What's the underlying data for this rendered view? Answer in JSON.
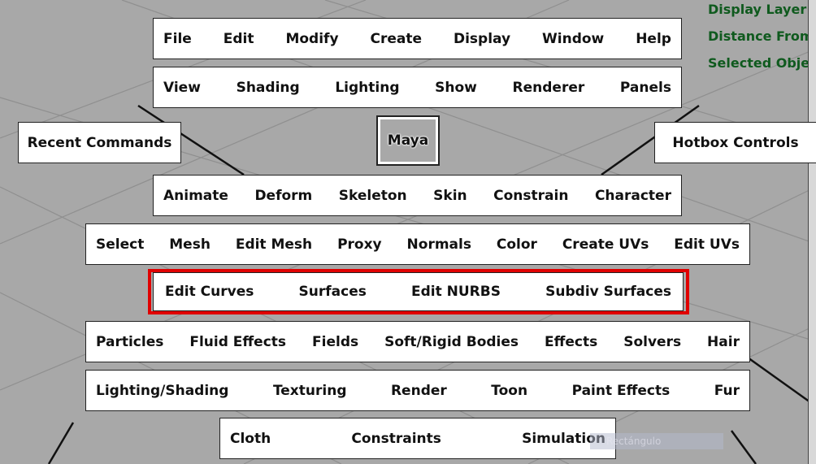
{
  "hud": {
    "lines": [
      "Display Layer:",
      "Distance From",
      "Selected Obje"
    ],
    "color": "#0f5a1e"
  },
  "rows": {
    "main_menu": [
      "File",
      "Edit",
      "Modify",
      "Create",
      "Display",
      "Window",
      "Help"
    ],
    "panel_menu": [
      "View",
      "Shading",
      "Lighting",
      "Show",
      "Renderer",
      "Panels"
    ],
    "animation": [
      "Animate",
      "Deform",
      "Skeleton",
      "Skin",
      "Constrain",
      "Character"
    ],
    "polygons": [
      "Select",
      "Mesh",
      "Edit Mesh",
      "Proxy",
      "Normals",
      "Color",
      "Create UVs",
      "Edit UVs"
    ],
    "surfaces": [
      "Edit Curves",
      "Surfaces",
      "Edit NURBS",
      "Subdiv Surfaces"
    ],
    "dynamics": [
      "Particles",
      "Fluid Effects",
      "Fields",
      "Soft/Rigid Bodies",
      "Effects",
      "Solvers",
      "Hair"
    ],
    "rendering": [
      "Lighting/Shading",
      "Texturing",
      "Render",
      "Toon",
      "Paint Effects",
      "Fur"
    ],
    "ncloth": [
      "Cloth",
      "Constraints",
      "Simulation"
    ]
  },
  "recent_commands": "Recent Commands",
  "maya": "Maya",
  "hotbox_controls": "Hotbox Controls",
  "tooltip": "Rectángulo",
  "highlight_color": "#e00000"
}
